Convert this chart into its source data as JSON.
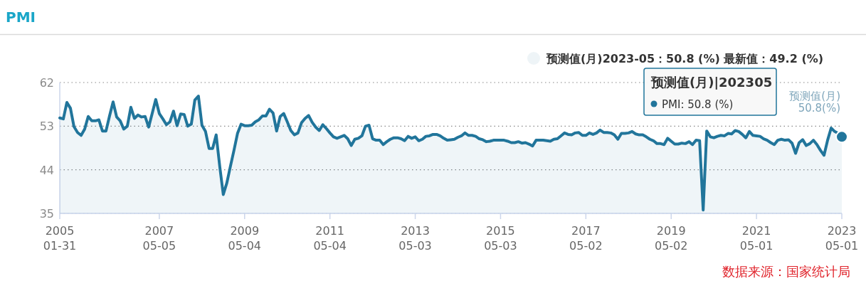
{
  "chart_data": {
    "type": "area",
    "title": "PMI",
    "categories": [
      "2005\n01-31",
      null,
      null,
      null,
      null,
      null,
      null,
      null,
      null,
      null,
      null,
      null,
      null,
      null,
      null,
      null,
      null,
      null,
      null,
      null,
      null,
      null,
      null,
      null,
      null,
      null,
      null,
      null,
      "2007\n05-05",
      null,
      null,
      null,
      null,
      null,
      null,
      null,
      null,
      null,
      null,
      null,
      null,
      null,
      null,
      null,
      null,
      null,
      null,
      null,
      null,
      null,
      null,
      null,
      "2009\n05-04",
      null,
      null,
      null,
      null,
      null,
      null,
      null,
      null,
      null,
      null,
      null,
      null,
      null,
      null,
      null,
      null,
      null,
      null,
      null,
      null,
      null,
      null,
      null,
      "2011\n05-04",
      null,
      null,
      null,
      null,
      null,
      null,
      null,
      null,
      null,
      null,
      null,
      null,
      null,
      null,
      null,
      null,
      null,
      null,
      null,
      null,
      null,
      null,
      null,
      "2013\n05-03",
      null,
      null,
      null,
      null,
      null,
      null,
      null,
      null,
      null,
      null,
      null,
      null,
      null,
      null,
      null,
      null,
      null,
      null,
      null,
      null,
      null,
      null,
      null,
      "2015\n05-03",
      null,
      null,
      null,
      null,
      null,
      null,
      null,
      null,
      null,
      null,
      null,
      null,
      null,
      null,
      null,
      null,
      null,
      null,
      null,
      null,
      null,
      null,
      null,
      "2017\n05-02",
      null,
      null,
      null,
      null,
      null,
      null,
      null,
      null,
      null,
      null,
      null,
      null,
      null,
      null,
      null,
      null,
      null,
      null,
      null,
      null,
      null,
      null,
      null,
      "2019\n05-02",
      null,
      null,
      null,
      null,
      null,
      null,
      null,
      null,
      null,
      null,
      null,
      null,
      null,
      null,
      null,
      null,
      null,
      null,
      null,
      null,
      null,
      null,
      null,
      "2021\n05-01",
      null,
      null,
      null,
      null,
      null,
      null,
      null,
      null,
      null,
      null,
      null,
      null,
      null,
      null,
      null,
      null,
      null,
      null,
      null,
      null,
      null,
      null,
      null,
      "2023\n05-01"
    ],
    "series": [
      {
        "color": "#21759b",
        "values": [
          54.7,
          54.5,
          57.9,
          56.7,
          52.9,
          51.7,
          51.1,
          52.4,
          55.0,
          54.1,
          54.1,
          54.3,
          52.0,
          52.0,
          55.1,
          58.0,
          54.9,
          54.1,
          52.4,
          53.0,
          56.9,
          54.6,
          55.3,
          54.9,
          55.0,
          52.8,
          55.6,
          58.5,
          55.6,
          54.5,
          53.3,
          53.9,
          56.1,
          53.1,
          55.5,
          55.4,
          53.0,
          53.4,
          58.4,
          59.2,
          53.2,
          51.9,
          48.4,
          48.4,
          51.2,
          44.7,
          38.9,
          41.3,
          44.7,
          48.0,
          51.5,
          53.4,
          53.1,
          53.1,
          53.2,
          53.9,
          54.3,
          55.1,
          55.1,
          56.5,
          55.7,
          52.0,
          55.0,
          55.6,
          53.9,
          52.1,
          51.2,
          51.6,
          53.7,
          54.6,
          55.2,
          53.8,
          52.8,
          52.1,
          53.3,
          52.5,
          51.6,
          50.8,
          50.5,
          50.8,
          51.1,
          50.4,
          49.0,
          50.3,
          50.5,
          51.0,
          53.0,
          53.2,
          50.4,
          50.1,
          50.1,
          49.2,
          49.8,
          50.3,
          50.6,
          50.6,
          50.4,
          50.0,
          50.9,
          50.5,
          50.8,
          50.0,
          50.3,
          50.9,
          51.0,
          51.3,
          51.3,
          51.0,
          50.5,
          50.1,
          50.2,
          50.3,
          50.7,
          51.0,
          51.6,
          51.1,
          51.1,
          50.9,
          50.4,
          50.2,
          49.8,
          49.9,
          50.1,
          50.1,
          50.1,
          50.1,
          49.9,
          49.6,
          49.6,
          49.8,
          49.5,
          49.6,
          49.3,
          48.9,
          50.1,
          50.1,
          50.1,
          50.0,
          49.9,
          50.3,
          50.4,
          51.0,
          51.6,
          51.3,
          51.2,
          51.6,
          51.7,
          51.1,
          51.1,
          51.6,
          51.3,
          51.6,
          52.2,
          51.7,
          51.7,
          51.6,
          51.2,
          50.3,
          51.5,
          51.5,
          51.6,
          51.9,
          51.4,
          51.2,
          51.2,
          50.8,
          50.3,
          50.0,
          49.4,
          49.4,
          49.2,
          50.5,
          49.9,
          49.3,
          49.3,
          49.5,
          49.4,
          49.8,
          49.2,
          50.1,
          50.0,
          35.7,
          52.0,
          50.8,
          50.6,
          50.9,
          51.1,
          51.0,
          51.5,
          51.4,
          52.1,
          51.9,
          51.3,
          50.6,
          51.9,
          51.1,
          51.0,
          50.9,
          50.4,
          50.1,
          49.6,
          49.2,
          50.1,
          50.3,
          50.1,
          50.2,
          49.5,
          47.4,
          49.6,
          50.2,
          49.0,
          49.4,
          50.1,
          49.2,
          48.0,
          47.0,
          50.1,
          52.6,
          51.9,
          51.5,
          50.8
        ]
      }
    ],
    "ylim": [
      35,
      62
    ],
    "yticks": [
      35,
      44,
      53,
      62
    ],
    "grid": "y",
    "annotations": [
      "预测值(月)2023-05：50.8 (%) 最新值：49.2 (%)",
      "预测值(月)|202305\nPMI: 50.8 (%)",
      {
        "text": "预测值(月)\n50.8(%)",
        "x": "2023\n05-01",
        "y": 50.8
      },
      "数据来源：国家统计局"
    ]
  }
}
